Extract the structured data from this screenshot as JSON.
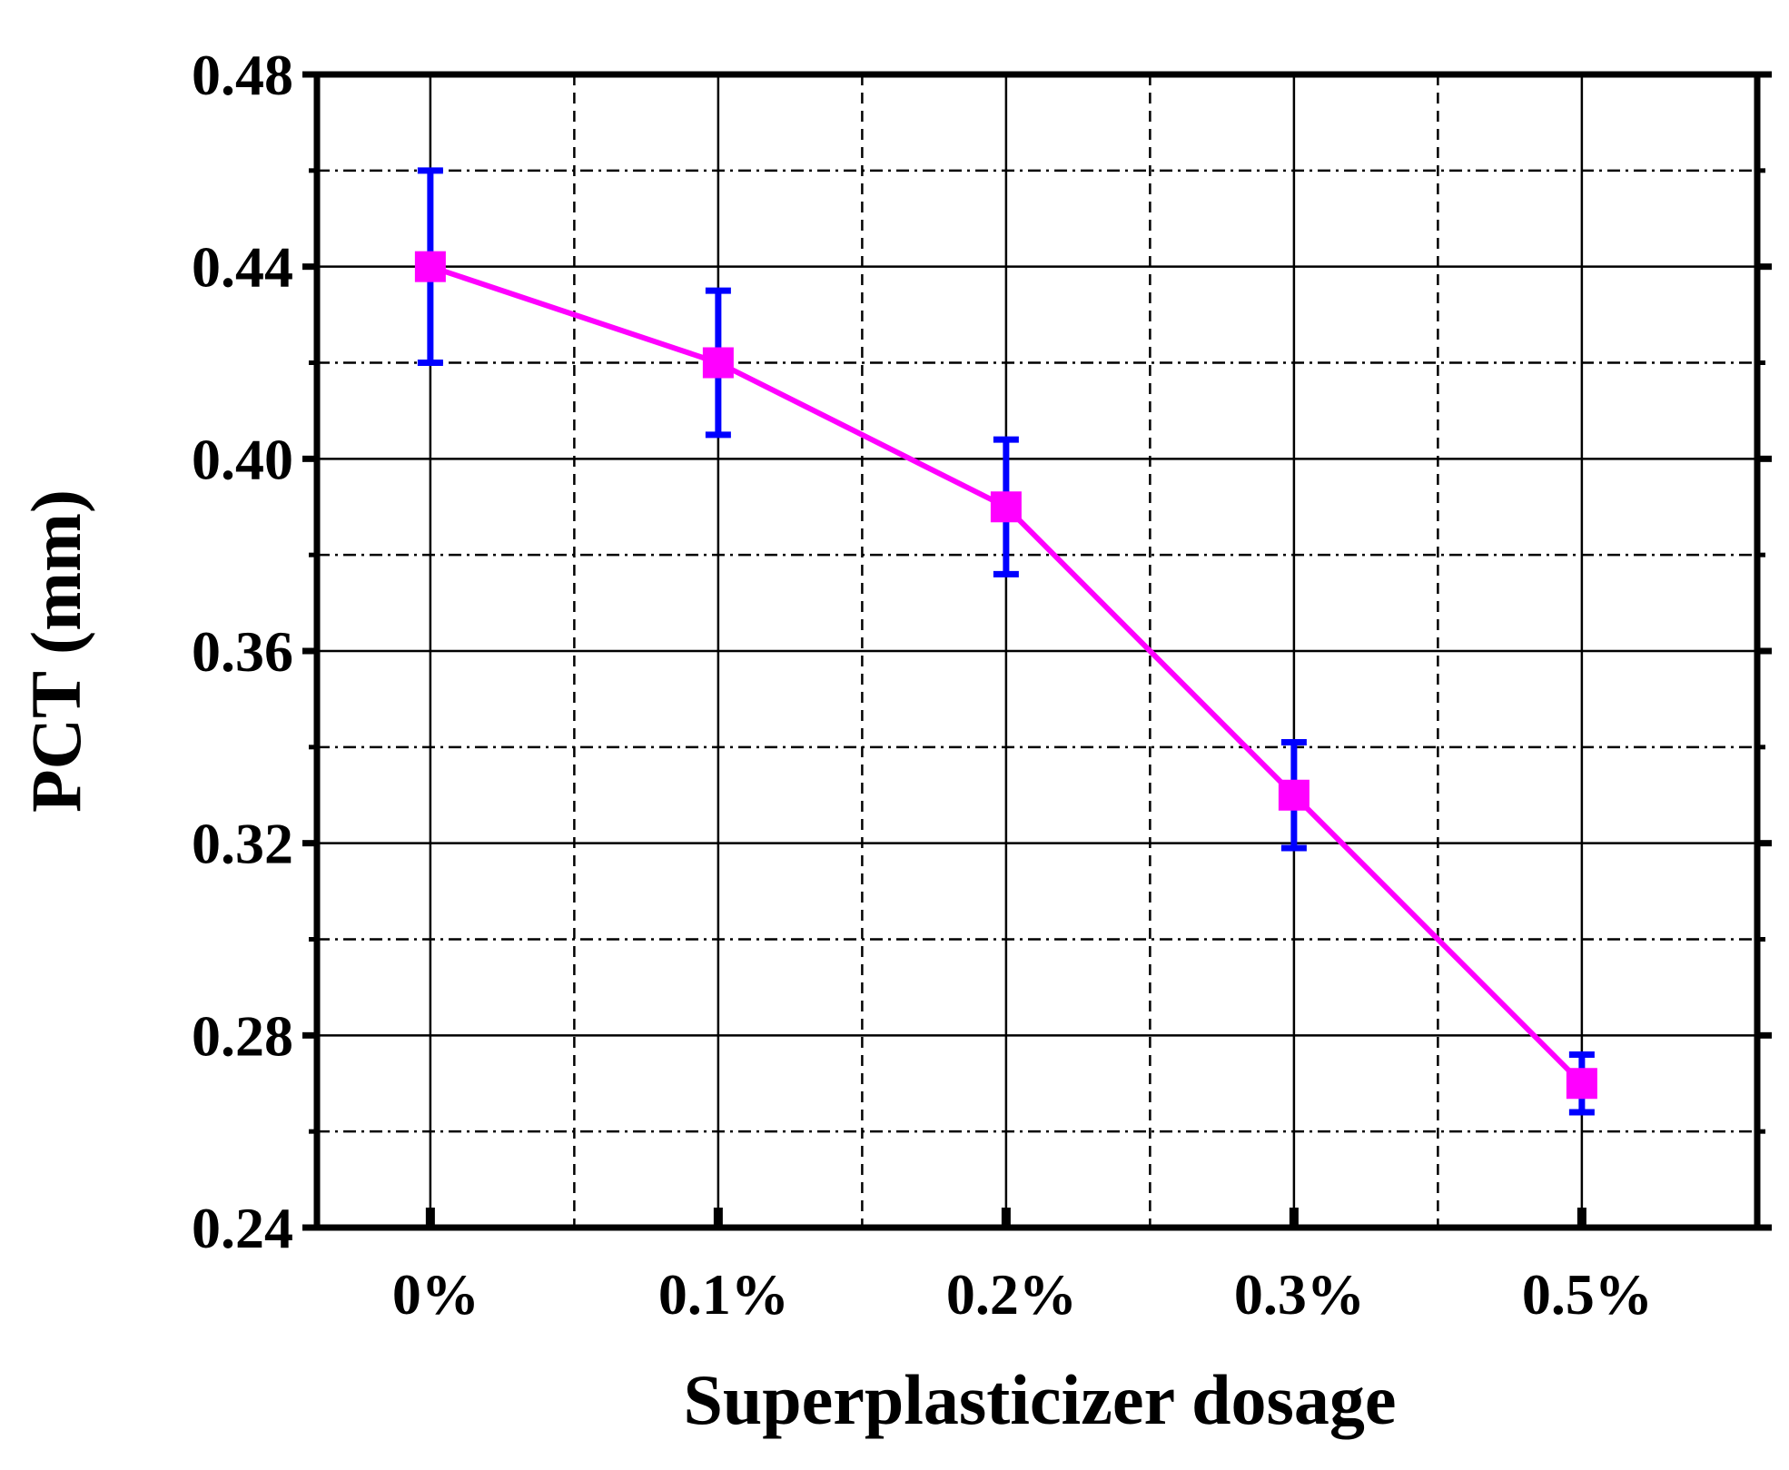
{
  "chart_data": {
    "type": "line",
    "title": "",
    "xlabel": "Superplasticizer dosage",
    "ylabel": "PCT (mm)",
    "categories": [
      "0%",
      "0.1%",
      "0.2%",
      "0.3%",
      "0.5%"
    ],
    "series": [
      {
        "name": "PCT",
        "values": [
          0.44,
          0.42,
          0.39,
          0.33,
          0.27
        ],
        "error": [
          0.02,
          0.015,
          0.014,
          0.011,
          0.006
        ]
      }
    ],
    "ylim": [
      0.24,
      0.48
    ],
    "yticks": [
      0.24,
      0.28,
      0.32,
      0.36,
      0.4,
      0.44,
      0.48
    ],
    "ytick_labels": [
      "0.24",
      "0.28",
      "0.32",
      "0.36",
      "0.40",
      "0.44",
      "0.48"
    ],
    "y_minor_step": 0.02,
    "grid": true,
    "colors": {
      "line": "#ff00ff",
      "marker": "#ff00ff",
      "errorbar": "#0000ff",
      "frame": "#000000",
      "grid": "#000000"
    }
  }
}
